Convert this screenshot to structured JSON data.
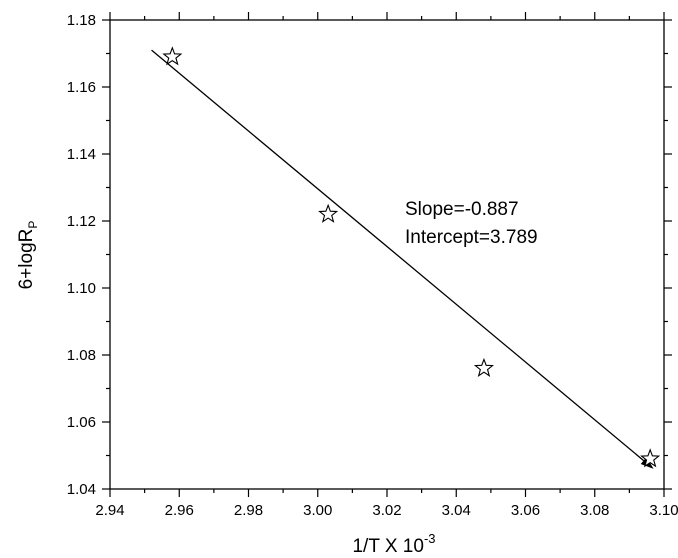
{
  "chart_data": {
    "type": "scatter",
    "xlabel": "1/T X 10",
    "xlabel_sup": "-3",
    "ylabel": "6+logR",
    "ylabel_sub": "P",
    "xlim": [
      2.94,
      3.1
    ],
    "ylim": [
      1.04,
      1.18
    ],
    "xticks": [
      "2.94",
      "2.96",
      "2.98",
      "3.00",
      "3.02",
      "3.04",
      "3.06",
      "3.08",
      "3.10"
    ],
    "yticks": [
      "1.04",
      "1.06",
      "1.08",
      "1.10",
      "1.12",
      "1.14",
      "1.16",
      "1.18"
    ],
    "grid": false,
    "legend": "none",
    "marker": "star-open",
    "points": [
      {
        "x": 2.958,
        "y": 1.169
      },
      {
        "x": 3.003,
        "y": 1.122
      },
      {
        "x": 3.048,
        "y": 1.076
      },
      {
        "x": 3.096,
        "y": 1.049
      }
    ],
    "fit_line": {
      "x": [
        2.952,
        3.097
      ],
      "y": [
        1.171,
        1.046
      ]
    },
    "annotations": [
      "Slope=-0.887",
      "Intercept=3.789"
    ],
    "colors": {
      "line": "#000000",
      "marker_stroke": "#000000"
    }
  }
}
